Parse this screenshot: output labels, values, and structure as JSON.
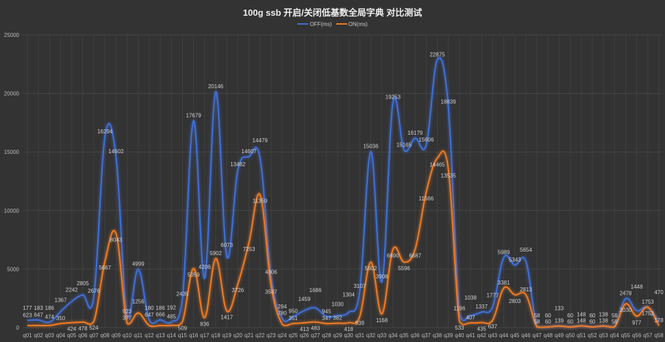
{
  "chart_data": {
    "type": "line",
    "title": "100g ssb 开启/关闭低基数全局字典 对比测试",
    "xlabel": "",
    "ylabel": "",
    "ylim": [
      0,
      25000
    ],
    "yticks": [
      0,
      5000,
      10000,
      15000,
      20000,
      25000
    ],
    "grid": true,
    "legend_position": "top-center",
    "categories": [
      "q01",
      "q02",
      "q03",
      "q04",
      "q05",
      "q06",
      "q07",
      "q08",
      "q09",
      "q10",
      "q11",
      "q12",
      "q13",
      "q14",
      "q15",
      "q16",
      "q17",
      "q18",
      "q19",
      "q20",
      "q21",
      "q22",
      "q23",
      "q24",
      "q25",
      "q26",
      "q27",
      "q28",
      "q29",
      "q30",
      "q31",
      "q32",
      "q33",
      "q34",
      "q35",
      "q36",
      "q37",
      "q38",
      "q39",
      "q40",
      "q41",
      "q42",
      "q43",
      "q44",
      "q45",
      "q46",
      "q47",
      "q48",
      "q49",
      "q50",
      "q51",
      "q52",
      "q53",
      "q54",
      "q55",
      "q56",
      "q57",
      "q58"
    ],
    "series": [
      {
        "name": "OFF(ms)",
        "color": "#3f6fd9",
        "values": [
          623,
          647,
          474,
          1367,
          2242,
          2805,
          2676,
          16294,
          14602,
          923,
          4999,
          647,
          666,
          485,
          2435,
          17679,
          4206,
          20146,
          6073,
          13482,
          14607,
          14479,
          4306,
          780,
          950,
          1459,
          1686,
          945,
          1030,
          1304,
          3107,
          15036,
          3908,
          19253,
          15165,
          16179,
          15606,
          22875,
          18839,
          1196,
          1038,
          1337,
          1777,
          5989,
          5343,
          5654,
          58,
          60,
          139,
          60,
          148,
          60,
          138,
          56,
          2478,
          1448,
          1753,
          470
        ]
      },
      {
        "name": "ON(ms)",
        "color": "#f07b25",
        "values": [
          177,
          183,
          186,
          350,
          424,
          478,
          524,
          5667,
          8043,
          377,
          1256,
          180,
          186,
          192,
          509,
          5059,
          836,
          5902,
          1417,
          3726,
          7253,
          11359,
          3587,
          294,
          351,
          413,
          483,
          347,
          382,
          418,
          939,
          5602,
          1168,
          6690,
          5596,
          6687,
          11566,
          14465,
          13535,
          533,
          407,
          435,
          637,
          3381,
          2803,
          2813,
          58,
          60,
          133,
          60,
          148,
          60,
          138,
          56,
          2030,
          977,
          1753,
          178
        ]
      }
    ]
  }
}
